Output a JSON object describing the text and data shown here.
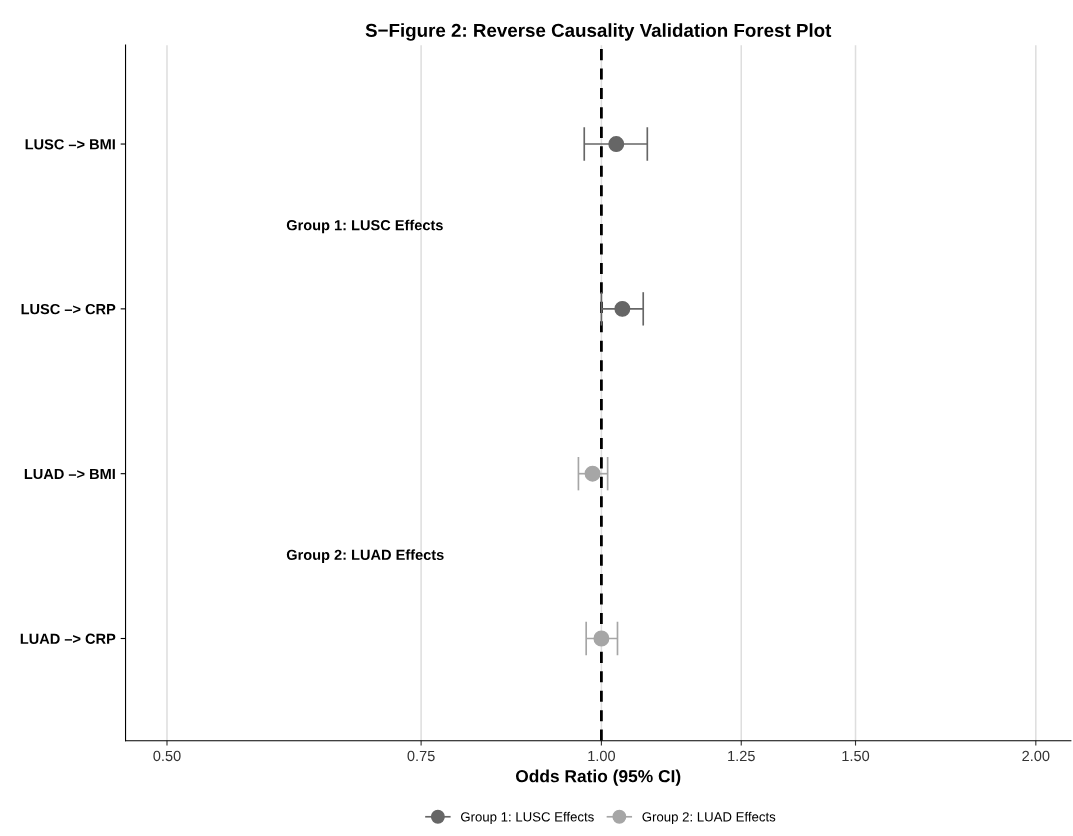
{
  "chart_data": {
    "type": "scatter",
    "orientation": "horizontal",
    "title": "S−Figure 2: Reverse Causality Validation Forest Plot",
    "xlabel": "Odds Ratio (95% CI)",
    "categories": [
      "LUSC –> BMI",
      "LUSC –> CRP",
      "LUAD –> BMI",
      "LUAD –> CRP"
    ],
    "series": [
      {
        "name": "Group 1: LUSC Effects",
        "color": "#666666",
        "values": [
          1.024,
          1.034,
          null,
          null
        ],
        "errors": [
          [
            0.973,
            1.076
          ],
          [
            1.0,
            1.069
          ],
          null,
          null
        ]
      },
      {
        "name": "Group 2: LUAD Effects",
        "color": "#a6a6a6",
        "values": [
          null,
          null,
          0.986,
          1.0
        ],
        "errors": [
          null,
          null,
          [
            0.964,
            1.01
          ],
          [
            0.976,
            1.026
          ]
        ]
      }
    ],
    "log": "x",
    "xlim": [
      0.468,
      2.115
    ],
    "xticks": [
      {
        "value": 0.5,
        "label": "0.50"
      },
      {
        "value": 0.75,
        "label": "0.75"
      },
      {
        "value": 1.0,
        "label": "1.00"
      },
      {
        "value": 1.25,
        "label": "1.25"
      },
      {
        "value": 1.5,
        "label": "1.50"
      },
      {
        "value": 2.0,
        "label": "2.00"
      }
    ],
    "grid": "x",
    "marker": "circle",
    "legend": "bottom",
    "ref_lines": [
      {
        "axis": "x",
        "value": 1.0,
        "line_style": "dashed",
        "color": "#000000"
      }
    ],
    "annotations": [
      "Group 1: LUSC Effects",
      "Group 2: LUAD Effects"
    ]
  }
}
